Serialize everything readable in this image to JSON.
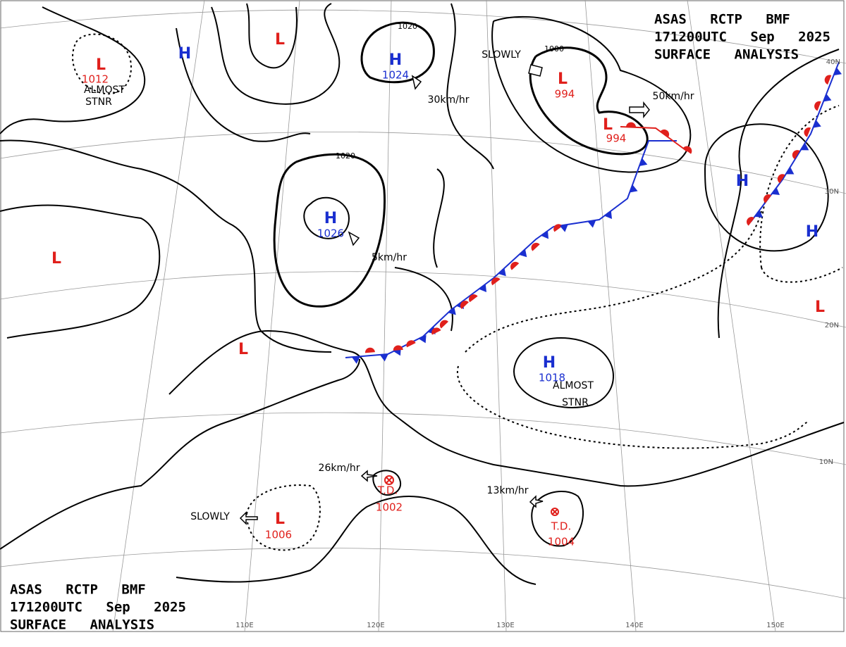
{
  "header": {
    "lines": [
      "ASAS RCTP BMF",
      "171200UTC Sep 2025",
      "SURFACE ANALYSIS"
    ]
  },
  "systems": [
    {
      "symbol": "L",
      "pressure": "1012"
    },
    {
      "symbol": "H"
    },
    {
      "symbol": "L"
    },
    {
      "symbol": "H",
      "pressure": "1024"
    },
    {
      "symbol": "L",
      "pressure": "994"
    },
    {
      "symbol": "L",
      "pressure": "994"
    },
    {
      "symbol": "H",
      "pressure": "1026"
    },
    {
      "symbol": "L"
    },
    {
      "symbol": "L"
    },
    {
      "symbol": "H"
    },
    {
      "symbol": "H"
    },
    {
      "symbol": "L"
    },
    {
      "symbol": "H",
      "pressure": "1018"
    },
    {
      "symbol": "L",
      "pressure": "1006"
    },
    {
      "symbol": "T.D.",
      "pressure": "1002"
    },
    {
      "symbol": "T.D.",
      "pressure": "1004"
    }
  ],
  "labels": [
    "ALMOST",
    "STNR",
    "SLOWLY",
    "30km/hr",
    "50km/hr",
    "5km/hr",
    "26km/hr",
    "13km/hr",
    "SLOWLY",
    "ALMOST",
    "STNR"
  ],
  "isobar_labels": [
    "1020",
    "1020",
    "1000"
  ],
  "latitudes": [
    "40N",
    "30N",
    "20N",
    "10N"
  ],
  "longitudes": [
    "110E",
    "120E",
    "130E",
    "140E",
    "150E"
  ]
}
